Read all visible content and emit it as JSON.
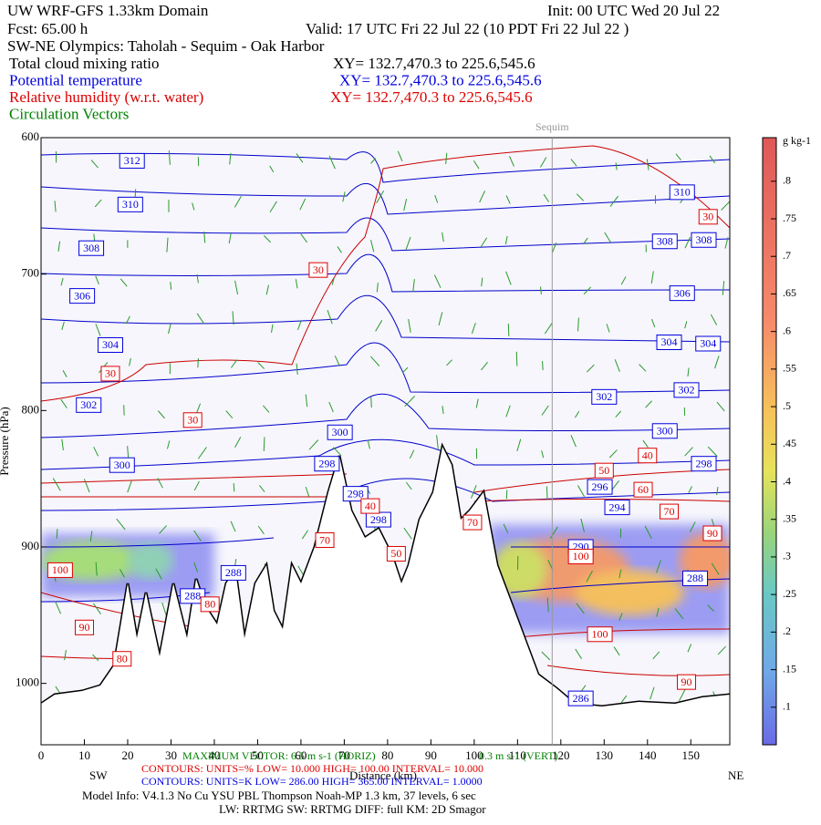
{
  "header": {
    "title": "UW WRF-GFS 1.33km Domain",
    "init": "Init: 00 UTC Wed 20 Jul 22",
    "fcst": "Fcst:   65.00 h",
    "valid": "Valid: 17 UTC Fri 22 Jul 22   (10 PDT Fri 22 Jul 22  )",
    "section": "SW-NE Olympics: Taholah - Sequim - Oak Harbor",
    "fields": [
      {
        "name": "Total cloud mixing ratio",
        "range": "XY= 132.7,470.3 to 225.6,545.6",
        "color": "#000000"
      },
      {
        "name": "Potential temperature",
        "range": "XY= 132.7,470.3 to 225.6,545.6",
        "color": "#0000dd"
      },
      {
        "name": "Relative humidity (w.r.t. water)",
        "range": "XY= 132.7,470.3 to 225.6,545.6",
        "color": "#dd0000"
      },
      {
        "name": "Circulation Vectors",
        "color": "#008000"
      }
    ]
  },
  "chart_data": {
    "type": "cross-section",
    "xlabel": "Distance (km)",
    "ylabel": "Pressure (hPa)",
    "left_end": "SW",
    "right_end": "NE",
    "xlim": [
      0,
      159
    ],
    "xticks": [
      0,
      10,
      20,
      30,
      40,
      50,
      60,
      70,
      80,
      90,
      100,
      110,
      120,
      130,
      140,
      150
    ],
    "ylim": [
      600,
      1045
    ],
    "yticks": [
      600,
      700,
      800,
      900,
      1000
    ],
    "marker": {
      "label": "Sequim",
      "x": 118
    },
    "colorbar": {
      "unit": "g kg-1",
      "clim": [
        0.05,
        0.858
      ],
      "ticks": [
        {
          "value": 0.1,
          "label": ".1"
        },
        {
          "value": 0.15,
          "label": ".15"
        },
        {
          "value": 0.2,
          "label": ".2"
        },
        {
          "value": 0.25,
          "label": ".25"
        },
        {
          "value": 0.3,
          "label": ".3"
        },
        {
          "value": 0.35,
          "label": ".35"
        },
        {
          "value": 0.4,
          "label": ".4"
        },
        {
          "value": 0.45,
          "label": ".45"
        },
        {
          "value": 0.5,
          "label": ".5"
        },
        {
          "value": 0.55,
          "label": ".55"
        },
        {
          "value": 0.6,
          "label": ".6"
        },
        {
          "value": 0.65,
          "label": ".65"
        },
        {
          "value": 0.7,
          "label": ".7"
        },
        {
          "value": 0.75,
          "label": ".75"
        },
        {
          "value": 0.8,
          "label": ".8"
        }
      ]
    },
    "theta_color": "#0000dd",
    "rh_color": "#dd0000",
    "theta_labels": [
      {
        "value": 312,
        "x": 21,
        "y": 617
      },
      {
        "value": 310,
        "x": 20.6,
        "y": 649
      },
      {
        "value": 310,
        "x": 148,
        "y": 640
      },
      {
        "value": 308,
        "x": 11.6,
        "y": 681
      },
      {
        "value": 308,
        "x": 144,
        "y": 676
      },
      {
        "value": 308,
        "x": 153,
        "y": 675
      },
      {
        "value": 306,
        "x": 9.5,
        "y": 716
      },
      {
        "value": 306,
        "x": 148,
        "y": 714
      },
      {
        "value": 304,
        "x": 16,
        "y": 752
      },
      {
        "value": 304,
        "x": 145,
        "y": 750
      },
      {
        "value": 304,
        "x": 154,
        "y": 751
      },
      {
        "value": 302,
        "x": 11,
        "y": 796
      },
      {
        "value": 302,
        "x": 130,
        "y": 790
      },
      {
        "value": 302,
        "x": 149,
        "y": 785
      },
      {
        "value": 300,
        "x": 18.7,
        "y": 840
      },
      {
        "value": 300,
        "x": 69,
        "y": 816
      },
      {
        "value": 300,
        "x": 144,
        "y": 815
      },
      {
        "value": 298,
        "x": 66,
        "y": 839
      },
      {
        "value": 298,
        "x": 153,
        "y": 839
      },
      {
        "value": 298,
        "x": 72.6,
        "y": 861
      },
      {
        "value": 298,
        "x": 77.9,
        "y": 880
      },
      {
        "value": 296,
        "x": 129,
        "y": 856
      },
      {
        "value": 294,
        "x": 133,
        "y": 871
      },
      {
        "value": 290,
        "x": 124.6,
        "y": 900
      },
      {
        "value": 288,
        "x": 44.4,
        "y": 919
      },
      {
        "value": 288,
        "x": 35,
        "y": 936
      },
      {
        "value": 288,
        "x": 151,
        "y": 923
      },
      {
        "value": 286,
        "x": 124.6,
        "y": 1011
      }
    ],
    "rh_labels": [
      {
        "value": 30,
        "x": 64,
        "y": 697
      },
      {
        "value": 30,
        "x": 154,
        "y": 658
      },
      {
        "value": 30,
        "x": 16,
        "y": 773
      },
      {
        "value": 30,
        "x": 35,
        "y": 807
      },
      {
        "value": 40,
        "x": 76,
        "y": 870
      },
      {
        "value": 40,
        "x": 140,
        "y": 833
      },
      {
        "value": 50,
        "x": 130,
        "y": 844
      },
      {
        "value": 60,
        "x": 139,
        "y": 858
      },
      {
        "value": 70,
        "x": 145,
        "y": 874
      },
      {
        "value": 70,
        "x": 65.5,
        "y": 895
      },
      {
        "value": 70,
        "x": 99.6,
        "y": 882
      },
      {
        "value": 90,
        "x": 155,
        "y": 890
      },
      {
        "value": 100,
        "x": 4.4,
        "y": 917
      },
      {
        "value": 50,
        "x": 82,
        "y": 905
      },
      {
        "value": 100,
        "x": 124.6,
        "y": 907
      },
      {
        "value": 80,
        "x": 39,
        "y": 942
      },
      {
        "value": 90,
        "x": 10,
        "y": 959
      },
      {
        "value": 80,
        "x": 18.7,
        "y": 982
      },
      {
        "value": 100,
        "x": 129,
        "y": 964
      },
      {
        "value": 90,
        "x": 149,
        "y": 999
      }
    ]
  },
  "footer": {
    "max_vector": "MAXIMUM VECTOR: 6.5 m s-1 (HORIZ)",
    "vert_vector": "0.3 m s-1 (VERT)",
    "rh_contours": "CONTOURS:  UNITS=%  LOW=  10.000    HIGH=  100.00     INTERVAL=  10.000",
    "theta_contours": "CONTOURS:  UNITS=K  LOW=  286.00    HIGH=  365.00     INTERVAL=   1.0000",
    "model_info": "Model Info: V4.1.3    No Cu    YSU PBL   Thompson     Noah-MP    1.3 km,   37 levels,     6 sec",
    "physics": "LW: RRTMG  SW: RRTMG    DIFF: full    KM: 2D Smagor"
  }
}
